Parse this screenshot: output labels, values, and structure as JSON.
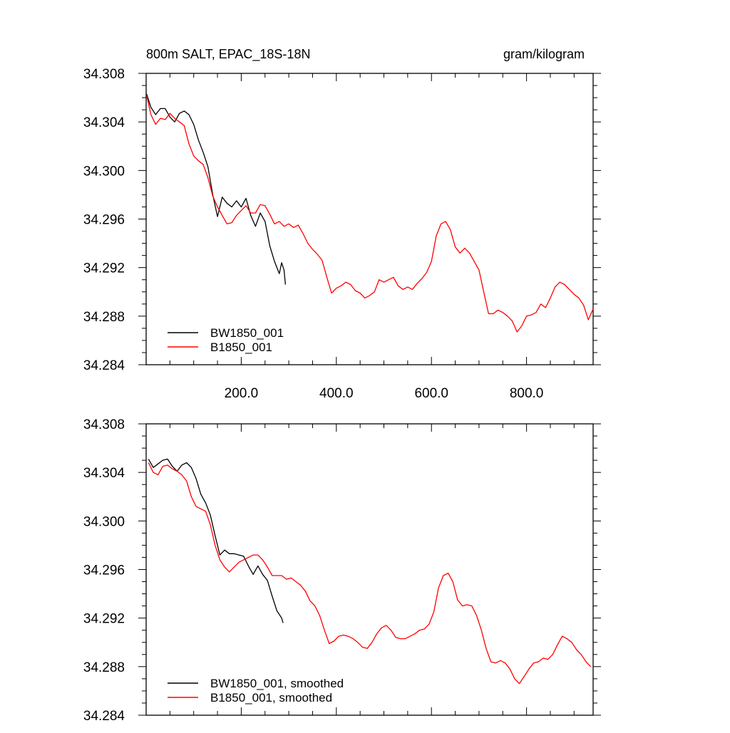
{
  "chart_data": [
    {
      "type": "line",
      "title": "800m SALT, EPAC_18S-18N",
      "units": "gram/kilogram",
      "xlim": [
        0,
        940
      ],
      "ylim": [
        34.284,
        34.308
      ],
      "xticks": [
        200,
        400,
        600,
        800
      ],
      "xtick_labels": [
        "200.0",
        "400.0",
        "600.0",
        "800.0"
      ],
      "yticks": [
        34.284,
        34.288,
        34.292,
        34.296,
        34.3,
        34.304,
        34.308
      ],
      "ytick_labels": [
        "34.284",
        "34.288",
        "34.292",
        "34.296",
        "34.300",
        "34.304",
        "34.308"
      ],
      "legend_position": "bottom-left",
      "series": [
        {
          "name": "BW1850_001",
          "color": "#000000",
          "x": [
            1,
            10,
            20,
            30,
            40,
            50,
            60,
            70,
            80,
            90,
            100,
            110,
            120,
            130,
            140,
            150,
            160,
            170,
            180,
            190,
            200,
            210,
            220,
            230,
            240,
            250,
            260,
            270,
            280,
            285,
            290,
            293
          ],
          "y": [
            34.3063,
            34.3052,
            34.3046,
            34.3051,
            34.3051,
            34.3044,
            34.304,
            34.3047,
            34.3049,
            34.3046,
            34.3038,
            34.3025,
            34.3015,
            34.3003,
            34.298,
            34.2962,
            34.2978,
            34.2973,
            34.297,
            34.2975,
            34.297,
            34.2977,
            34.2963,
            34.2954,
            34.2965,
            34.2958,
            34.2938,
            34.2925,
            34.2915,
            34.2924,
            34.2918,
            34.2906
          ]
        },
        {
          "name": "B1850_001",
          "color": "#ff0000",
          "x": [
            1,
            10,
            20,
            30,
            40,
            50,
            60,
            70,
            80,
            90,
            100,
            110,
            120,
            130,
            140,
            150,
            160,
            170,
            180,
            190,
            200,
            210,
            220,
            230,
            240,
            250,
            260,
            270,
            280,
            290,
            300,
            310,
            320,
            330,
            340,
            350,
            360,
            370,
            380,
            390,
            400,
            410,
            420,
            430,
            440,
            450,
            460,
            470,
            480,
            490,
            500,
            510,
            520,
            530,
            540,
            550,
            560,
            570,
            580,
            590,
            600,
            610,
            620,
            630,
            640,
            650,
            660,
            670,
            680,
            690,
            700,
            710,
            720,
            730,
            740,
            750,
            760,
            770,
            780,
            790,
            800,
            810,
            820,
            830,
            840,
            850,
            860,
            870,
            880,
            890,
            900,
            910,
            920,
            930,
            940
          ],
          "y": [
            34.3062,
            34.3046,
            34.3038,
            34.3043,
            34.3042,
            34.3047,
            34.3043,
            34.304,
            34.3037,
            34.3022,
            34.3012,
            34.3008,
            34.3005,
            34.2994,
            34.2979,
            34.297,
            34.2963,
            34.2956,
            34.2957,
            34.2963,
            34.2967,
            34.2971,
            34.2965,
            34.2965,
            34.2972,
            34.2971,
            34.2964,
            34.2956,
            34.2958,
            34.2954,
            34.2956,
            34.2953,
            34.2955,
            34.2948,
            34.294,
            34.2935,
            34.2931,
            34.2926,
            34.2912,
            34.2899,
            34.2903,
            34.2905,
            34.2908,
            34.2906,
            34.2901,
            34.2899,
            34.2895,
            34.2897,
            34.29,
            34.291,
            34.2908,
            34.291,
            34.2912,
            34.2905,
            34.2902,
            34.2904,
            34.2902,
            34.2907,
            34.2911,
            34.2916,
            34.2925,
            34.2946,
            34.2956,
            34.2958,
            34.2951,
            34.2937,
            34.2932,
            34.2936,
            34.2932,
            34.2925,
            34.2918,
            34.29,
            34.2882,
            34.2882,
            34.2885,
            34.2883,
            34.288,
            34.2876,
            34.2867,
            34.2872,
            34.288,
            34.2881,
            34.2883,
            34.289,
            34.2887,
            34.2895,
            34.2904,
            34.2908,
            34.2906,
            34.2902,
            34.2898,
            34.2895,
            34.2889,
            34.2877,
            34.2886
          ]
        }
      ]
    },
    {
      "type": "line",
      "title": "",
      "xlim": [
        0,
        940
      ],
      "ylim": [
        34.284,
        34.308
      ],
      "xticks": [
        200,
        400,
        600,
        800
      ],
      "yticks": [
        34.284,
        34.288,
        34.292,
        34.296,
        34.3,
        34.304,
        34.308
      ],
      "ytick_labels": [
        "34.284",
        "34.288",
        "34.292",
        "34.296",
        "34.300",
        "34.304",
        "34.308"
      ],
      "legend_position": "bottom-left",
      "series": [
        {
          "name": "BW1850_001, smoothed",
          "color": "#000000",
          "x": [
            5,
            15,
            25,
            35,
            45,
            55,
            65,
            75,
            85,
            95,
            105,
            115,
            125,
            135,
            145,
            155,
            165,
            175,
            185,
            195,
            205,
            215,
            225,
            235,
            245,
            255,
            265,
            275,
            285,
            288
          ],
          "y": [
            34.3051,
            34.3044,
            34.3047,
            34.305,
            34.3051,
            34.3045,
            34.3041,
            34.3046,
            34.3048,
            34.3044,
            34.3035,
            34.3022,
            34.3015,
            34.3005,
            34.2988,
            34.2972,
            34.2976,
            34.2973,
            34.2973,
            34.2972,
            34.2971,
            34.2963,
            34.2956,
            34.2963,
            34.2956,
            34.2951,
            34.2938,
            34.2926,
            34.292,
            34.2916
          ]
        },
        {
          "name": "B1850_001, smoothed",
          "color": "#ff0000",
          "x": [
            5,
            15,
            25,
            35,
            45,
            55,
            65,
            75,
            85,
            95,
            105,
            115,
            125,
            135,
            145,
            155,
            165,
            175,
            185,
            195,
            205,
            215,
            225,
            235,
            245,
            255,
            265,
            275,
            285,
            295,
            305,
            315,
            325,
            335,
            345,
            355,
            365,
            375,
            385,
            395,
            405,
            415,
            425,
            435,
            445,
            455,
            465,
            475,
            485,
            495,
            505,
            515,
            525,
            535,
            545,
            555,
            565,
            575,
            585,
            595,
            605,
            615,
            625,
            635,
            645,
            655,
            665,
            675,
            685,
            695,
            705,
            715,
            725,
            735,
            745,
            755,
            765,
            775,
            785,
            795,
            805,
            815,
            825,
            835,
            845,
            855,
            865,
            875,
            885,
            895,
            905,
            915,
            925,
            935
          ],
          "y": [
            34.3048,
            34.304,
            34.3038,
            34.3045,
            34.3046,
            34.3043,
            34.3041,
            34.3038,
            34.3033,
            34.302,
            34.3012,
            34.301,
            34.3008,
            34.2997,
            34.298,
            34.2968,
            34.2962,
            34.2958,
            34.2962,
            34.2966,
            34.2968,
            34.297,
            34.2972,
            34.2972,
            34.2968,
            34.2962,
            34.2955,
            34.2955,
            34.2955,
            34.2952,
            34.2953,
            34.295,
            34.2947,
            34.2942,
            34.2934,
            34.293,
            34.2922,
            34.291,
            34.2899,
            34.2901,
            34.2905,
            34.2906,
            34.2905,
            34.2903,
            34.29,
            34.2896,
            34.2895,
            34.29,
            34.2907,
            34.2912,
            34.2914,
            34.291,
            34.2904,
            34.2903,
            34.2903,
            34.2905,
            34.2907,
            34.291,
            34.2911,
            34.2915,
            34.2925,
            34.2945,
            34.2955,
            34.2957,
            34.295,
            34.2935,
            34.293,
            34.2931,
            34.293,
            34.2922,
            34.291,
            34.2895,
            34.2884,
            34.2883,
            34.2885,
            34.2883,
            34.2878,
            34.287,
            34.2866,
            34.2872,
            34.2878,
            34.2883,
            34.2884,
            34.2887,
            34.2886,
            34.289,
            34.2898,
            34.2905,
            34.2903,
            34.29,
            34.2894,
            34.289,
            34.2884,
            34.288
          ]
        }
      ]
    }
  ]
}
